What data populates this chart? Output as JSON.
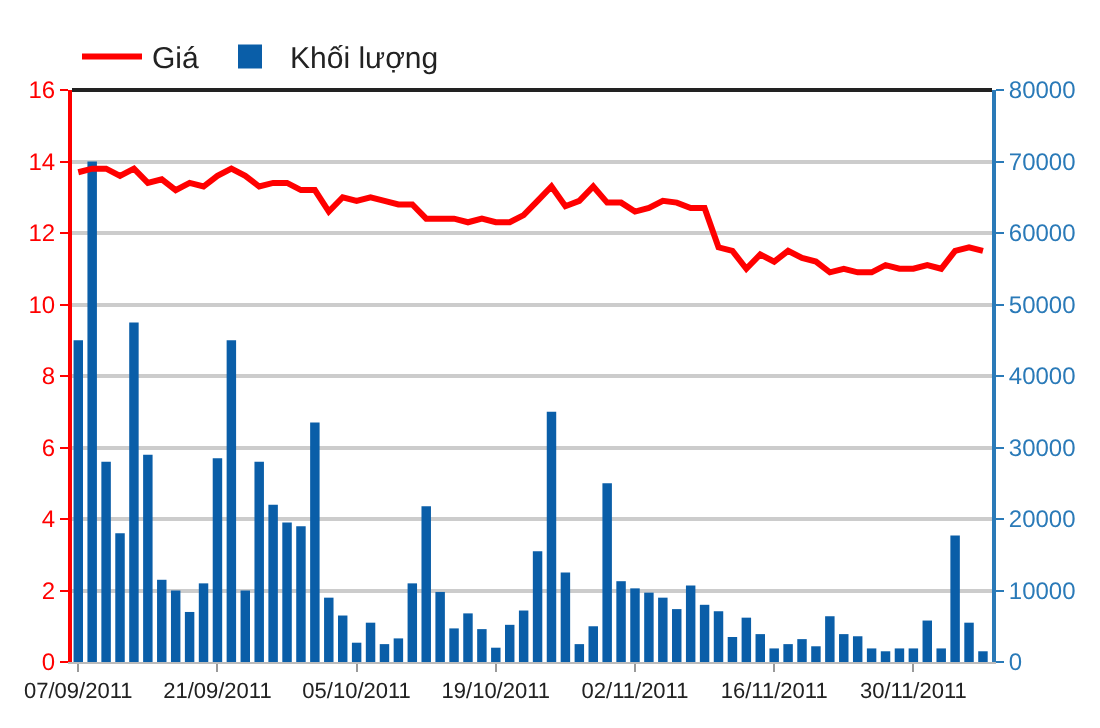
{
  "chart_data": {
    "type": "bar",
    "categories": [
      "07/09/2011",
      null,
      null,
      null,
      null,
      null,
      null,
      null,
      null,
      null,
      "21/09/2011",
      null,
      null,
      null,
      null,
      null,
      null,
      null,
      null,
      null,
      "05/10/2011",
      null,
      null,
      null,
      null,
      null,
      null,
      null,
      null,
      null,
      "19/10/2011",
      null,
      null,
      null,
      null,
      null,
      null,
      null,
      null,
      null,
      "02/11/2011",
      null,
      null,
      null,
      null,
      null,
      null,
      null,
      null,
      null,
      "16/11/2011",
      null,
      null,
      null,
      null,
      null,
      null,
      null,
      null,
      null,
      "30/11/2011",
      null,
      null,
      null,
      null,
      null
    ],
    "series": [
      {
        "name": "Giá",
        "type": "line",
        "color": "#ff0000",
        "values": [
          13.7,
          13.8,
          13.8,
          13.6,
          13.8,
          13.4,
          13.5,
          13.2,
          13.4,
          13.3,
          13.6,
          13.8,
          13.6,
          13.3,
          13.4,
          13.4,
          13.2,
          13.2,
          12.6,
          13.0,
          12.9,
          13.0,
          12.9,
          12.8,
          12.8,
          12.4,
          12.4,
          12.4,
          12.3,
          12.4,
          12.3,
          12.3,
          12.5,
          12.9,
          13.3,
          12.75,
          12.9,
          13.3,
          12.85,
          12.85,
          12.6,
          12.7,
          12.9,
          12.85,
          12.7,
          12.7,
          11.6,
          11.5,
          11.0,
          11.4,
          11.2,
          11.5,
          11.3,
          11.2,
          10.9,
          11.0,
          10.9,
          10.9,
          11.1,
          11.0,
          11.0,
          11.1,
          11.0,
          11.5,
          11.6,
          11.5
        ]
      },
      {
        "name": "Khối lượng",
        "axis": "y2",
        "color": "#0a5ea8",
        "values": [
          45000,
          70000,
          28000,
          18000,
          47500,
          29000,
          11500,
          10000,
          7000,
          11000,
          28500,
          45000,
          10000,
          28000,
          22000,
          19500,
          19000,
          33500,
          9000,
          6500,
          2700,
          5500,
          2500,
          3300,
          11000,
          21800,
          9800,
          4700,
          6800,
          4600,
          2000,
          5200,
          7200,
          15500,
          35000,
          12500,
          2500,
          5000,
          25000,
          11300,
          10300,
          9700,
          9000,
          7400,
          10700,
          8000,
          7100,
          3500,
          6200,
          3900,
          1900,
          2500,
          3200,
          2200,
          6400,
          3900,
          3600,
          1900,
          1500,
          1900,
          1900,
          5800,
          1900,
          17700,
          5500,
          1500
        ]
      }
    ],
    "ylim": [
      0,
      16
    ],
    "yticks": [
      0,
      2,
      4,
      6,
      8,
      10,
      12,
      14,
      16
    ],
    "y2lim": [
      0,
      80000
    ],
    "y2ticks": [
      0,
      10000,
      20000,
      30000,
      40000,
      50000,
      60000,
      70000,
      80000
    ],
    "grid": "y",
    "legend": "top left"
  }
}
